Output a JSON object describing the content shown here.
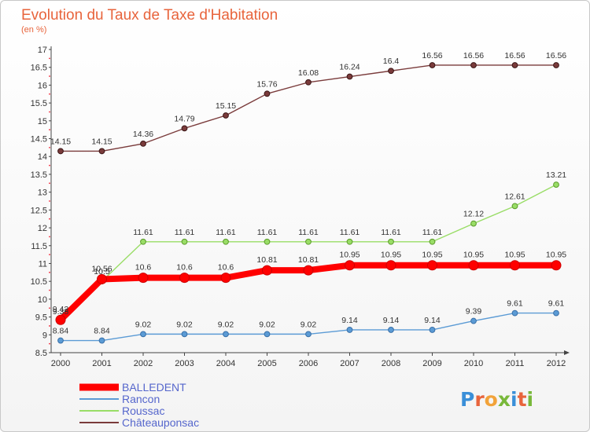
{
  "chart_data": {
    "type": "line",
    "title": "Evolution du Taux de Taxe d'Habitation",
    "subtitle": "(en %)",
    "x": [
      "2000",
      "2001",
      "2002",
      "2003",
      "2004",
      "2005",
      "2006",
      "2007",
      "2008",
      "2009",
      "2010",
      "2011",
      "2012"
    ],
    "y_ticks": [
      "8.5",
      "9",
      "9.5",
      "10",
      "10.5",
      "11",
      "11.5",
      "12",
      "12.5",
      "13",
      "13.5",
      "14",
      "14.5",
      "15",
      "15.5",
      "16",
      "16.5",
      "17"
    ],
    "ylim": [
      8.5,
      17
    ],
    "grid": false,
    "legend_position": "bottom-left",
    "series": [
      {
        "name": "BALLEDENT",
        "color": "#ff0000",
        "values": [
          9.42,
          10.56,
          10.6,
          10.6,
          10.6,
          10.81,
          10.81,
          10.95,
          10.95,
          10.95,
          10.95,
          10.95,
          10.95
        ],
        "labels": [
          "9.42",
          "10.56",
          "10.6",
          "10.6",
          "10.6",
          "10.81",
          "10.81",
          "10.95",
          "10.95",
          "10.95",
          "10.95",
          "10.95",
          "10.95"
        ]
      },
      {
        "name": "Rancon",
        "color": "#5b9bd5",
        "values": [
          8.84,
          8.84,
          9.02,
          9.02,
          9.02,
          9.02,
          9.02,
          9.14,
          9.14,
          9.14,
          9.39,
          9.61,
          9.61
        ],
        "labels": [
          "8.84",
          "8.84",
          "9.02",
          "9.02",
          "9.02",
          "9.02",
          "9.02",
          "9.14",
          "9.14",
          "9.14",
          "9.39",
          "9.61",
          "9.61"
        ]
      },
      {
        "name": "Roussac",
        "color": "#99dd66",
        "values": [
          9.38,
          10.5,
          11.61,
          11.61,
          11.61,
          11.61,
          11.61,
          11.61,
          11.61,
          11.61,
          12.12,
          12.61,
          13.21
        ],
        "labels": [
          "9.38",
          "10.5",
          "11.61",
          "11.61",
          "11.61",
          "11.61",
          "11.61",
          "11.61",
          "11.61",
          "11.61",
          "12.12",
          "12.61",
          "13.21"
        ]
      },
      {
        "name": "Châteauponsac",
        "color": "#7a3b3b",
        "values": [
          14.15,
          14.15,
          14.36,
          14.79,
          15.15,
          15.76,
          16.08,
          16.24,
          16.4,
          16.56,
          16.56,
          16.56,
          16.56
        ],
        "labels": [
          "14.15",
          "14.15",
          "14.36",
          "14.79",
          "15.15",
          "15.76",
          "16.08",
          "16.24",
          "16.4",
          "16.56",
          "16.56",
          "16.56",
          "16.56"
        ]
      }
    ]
  },
  "logo": {
    "text": "Proxiti"
  }
}
